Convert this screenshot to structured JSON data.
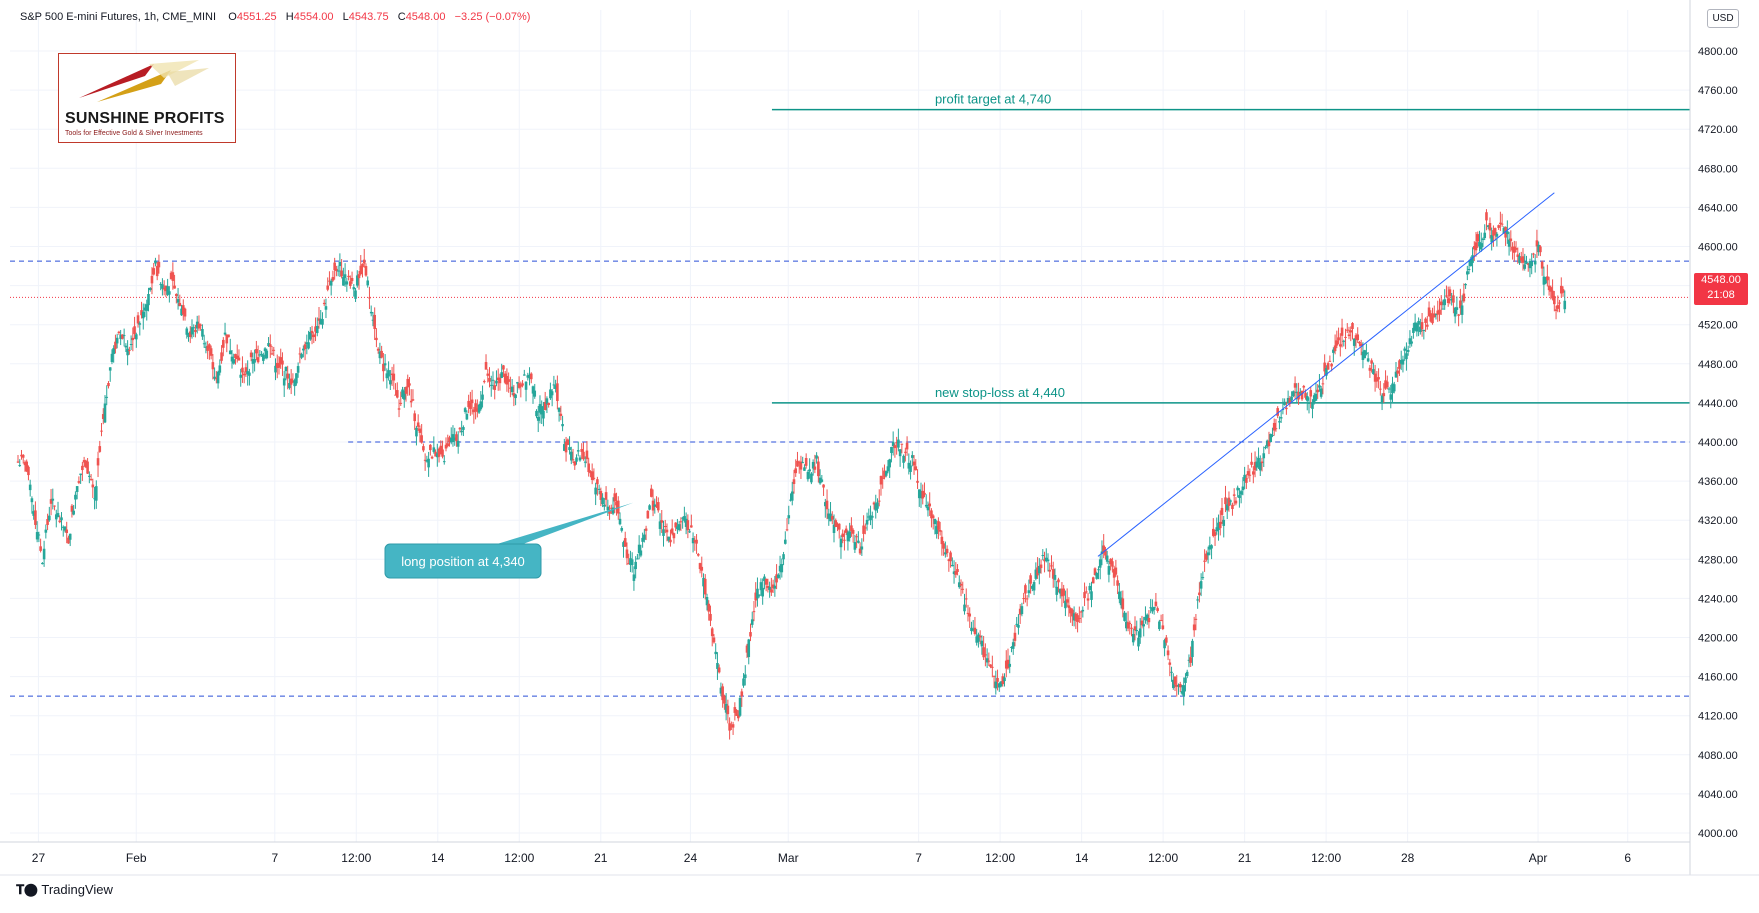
{
  "header": {
    "symbol": "S&P 500 E-mini Futures, 1h, CME_MINI",
    "open_label": "O",
    "open": "4551.25",
    "high_label": "H",
    "high": "4554.00",
    "low_label": "L",
    "low": "4543.75",
    "close_label": "C",
    "close": "4548.00",
    "change": "−3.25 (−0.07%)"
  },
  "currency": "USD",
  "price_tag": {
    "price": "4548.00",
    "timer": "21:08"
  },
  "footer": {
    "brand": "TradingView"
  },
  "logo": {
    "name": "SUNSHINE PROFITS",
    "tagline": "Tools for Effective Gold & Silver Investments"
  },
  "colors": {
    "up": "#26a69a",
    "down": "#ef5350",
    "level": "#2a4fd8",
    "trend": "#2962ff",
    "target": "#0d9488",
    "callout": "#45b5c4",
    "last_price": "#f23645"
  },
  "chart_data": {
    "type": "candlestick",
    "interval": "1h",
    "ylim": [
      4000,
      4800
    ],
    "y_ticks": [
      4000,
      4040,
      4080,
      4120,
      4160,
      4200,
      4240,
      4280,
      4320,
      4360,
      4400,
      4440,
      4480,
      4520,
      4560,
      4600,
      4640,
      4680,
      4720,
      4760,
      4800
    ],
    "y_tick_labels": [
      "4000.00",
      "4040.00",
      "4080.00",
      "4120.00",
      "4160.00",
      "4200.00",
      "4240.00",
      "4280.00",
      "4320.00",
      "4360.00",
      "4400.00",
      "4440.00",
      "4480.00",
      "4520.00",
      "4560.00",
      "4600.00",
      "4640.00",
      "4680.00",
      "4720.00",
      "4760.00",
      "4800.00"
    ],
    "x_labels": [
      {
        "label": "27",
        "slot": 3
      },
      {
        "label": "Feb",
        "slot": 15
      },
      {
        "label": "7",
        "slot": 32
      },
      {
        "label": "12:00",
        "slot": 42
      },
      {
        "label": "14",
        "slot": 52
      },
      {
        "label": "12:00",
        "slot": 62
      },
      {
        "label": "21",
        "slot": 72
      },
      {
        "label": "24",
        "slot": 83
      },
      {
        "label": "Mar",
        "slot": 95
      },
      {
        "label": "7",
        "slot": 111
      },
      {
        "label": "12:00",
        "slot": 121
      },
      {
        "label": "14",
        "slot": 131
      },
      {
        "label": "12:00",
        "slot": 141
      },
      {
        "label": "21",
        "slot": 151
      },
      {
        "label": "12:00",
        "slot": 161
      },
      {
        "label": "28",
        "slot": 171
      },
      {
        "label": "Apr",
        "slot": 187
      },
      {
        "label": "6",
        "slot": 198
      }
    ],
    "closes": [
      4380,
      4330,
      4280,
      4340,
      4320,
      4300,
      4360,
      4380,
      4340,
      4420,
      4490,
      4510,
      4500,
      4520,
      4540,
      4580,
      4560,
      4560,
      4540,
      4510,
      4520,
      4500,
      4460,
      4510,
      4490,
      4470,
      4480,
      4490,
      4500,
      4480,
      4470,
      4460,
      4500,
      4510,
      4520,
      4560,
      4580,
      4570,
      4560,
      4580,
      4530,
      4480,
      4470,
      4440,
      4460,
      4420,
      4380,
      4390,
      4380,
      4400,
      4410,
      4440,
      4430,
      4470,
      4460,
      4470,
      4450,
      4460,
      4470,
      4430,
      4440,
      4460,
      4400,
      4380,
      4390,
      4370,
      4350,
      4330,
      4340,
      4290,
      4270,
      4300,
      4340,
      4320,
      4300,
      4310,
      4320,
      4300,
      4260,
      4200,
      4150,
      4110,
      4120,
      4180,
      4240,
      4260,
      4250,
      4280,
      4340,
      4380,
      4370,
      4380,
      4340,
      4320,
      4300,
      4310,
      4290,
      4320,
      4340,
      4370,
      4400,
      4390,
      4380,
      4350,
      4330,
      4310,
      4280,
      4270,
      4240,
      4210,
      4190,
      4170,
      4150,
      4170,
      4210,
      4240,
      4260,
      4280,
      4270,
      4250,
      4230,
      4220,
      4240,
      4260,
      4290,
      4270,
      4240,
      4210,
      4200,
      4220,
      4230,
      4200,
      4160,
      4140,
      4180,
      4250,
      4290,
      4310,
      4330,
      4340,
      4360,
      4370,
      4380,
      4400,
      4420,
      4440,
      4450,
      4450,
      4440,
      4460,
      4480,
      4500,
      4510,
      4510,
      4490,
      4470,
      4450,
      4450,
      4480,
      4500,
      4520,
      4520,
      4530,
      4540,
      4550,
      4530,
      4580,
      4600,
      4620,
      4610,
      4620,
      4600,
      4590,
      4580,
      4600,
      4560,
      4540,
      4550
    ],
    "annotations": {
      "profit_target_label": "profit target at 4,740",
      "stop_loss_label": "new stop-loss at 4,440",
      "long_position_label": "long position at 4,340"
    },
    "levels": {
      "profit_target": 4740,
      "stop_loss": 4440,
      "resistance": 4585,
      "support_mid": 4400,
      "support_low": 4140,
      "last_price": 4548
    },
    "long_entry": {
      "slot": 76,
      "price": 4340
    },
    "trendline": {
      "start": {
        "slot": 133,
        "price": 4283
      },
      "end": {
        "slot": 189,
        "price": 4655
      }
    },
    "grid": true,
    "price_scale": "right"
  }
}
